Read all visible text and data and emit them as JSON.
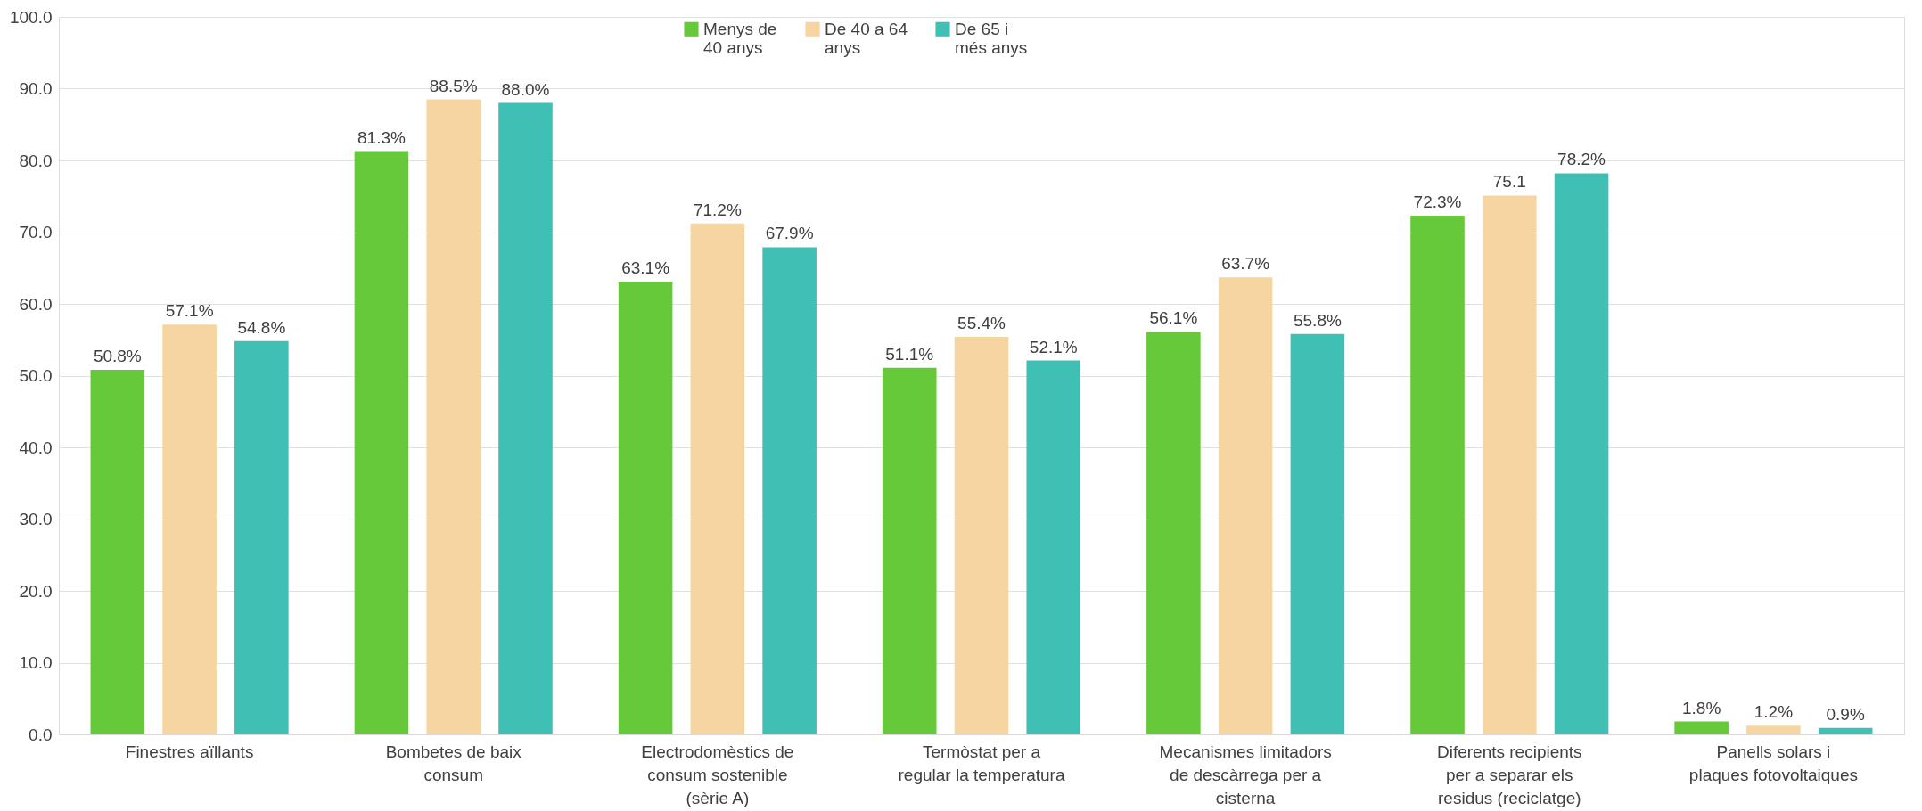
{
  "chart_data": {
    "type": "bar",
    "categories": [
      "Finestres aïllants",
      "Bombetes de baix consum",
      "Electrodomèstics de consum sostenible (sèrie A)",
      "Termòstat per a regular la temperatura",
      "Mecanismes limitadors de descàrrega per a cisterna",
      "Diferents recipients per a separar els residus (reciclatge)",
      "Panells solars i plaques fotovoltaiques"
    ],
    "series": [
      {
        "name": "Menys de 40 anys",
        "color": "#66c93a",
        "values": [
          50.8,
          81.3,
          63.1,
          51.1,
          56.1,
          72.3,
          1.8
        ],
        "value_labels": [
          "50.8%",
          "81.3%",
          "63.1%",
          "51.1%",
          "56.1%",
          "72.3%",
          "1.8%"
        ]
      },
      {
        "name": "De 40 a 64 anys",
        "color": "#f7d5a0",
        "values": [
          57.1,
          88.5,
          71.2,
          55.4,
          63.7,
          75.1,
          1.2
        ],
        "value_labels": [
          "57.1%",
          "88.5%",
          "71.2%",
          "55.4%",
          "63.7%",
          "75.1",
          "1.2%"
        ]
      },
      {
        "name": "De 65 i més anys",
        "color": "#40c0b5",
        "values": [
          54.8,
          88.0,
          67.9,
          52.1,
          55.8,
          78.2,
          0.9
        ],
        "value_labels": [
          "54.8%",
          "88.0%",
          "67.9%",
          "52.1%",
          "55.8%",
          "78.2%",
          "0.9%"
        ]
      }
    ],
    "ylim": [
      0,
      100
    ],
    "yticks": [
      {
        "value": 0,
        "label": "0.0"
      },
      {
        "value": 10,
        "label": "10.0"
      },
      {
        "value": 20,
        "label": "20.0"
      },
      {
        "value": 30,
        "label": "30.0"
      },
      {
        "value": 40,
        "label": "40.0"
      },
      {
        "value": 50,
        "label": "50.0"
      },
      {
        "value": 60,
        "label": "60.0"
      },
      {
        "value": 70,
        "label": "70.0"
      },
      {
        "value": 80,
        "label": "80.0"
      },
      {
        "value": 90,
        "label": "90.0"
      },
      {
        "value": 100,
        "label": "100.0"
      }
    ],
    "grid": "y",
    "legend": "top"
  }
}
